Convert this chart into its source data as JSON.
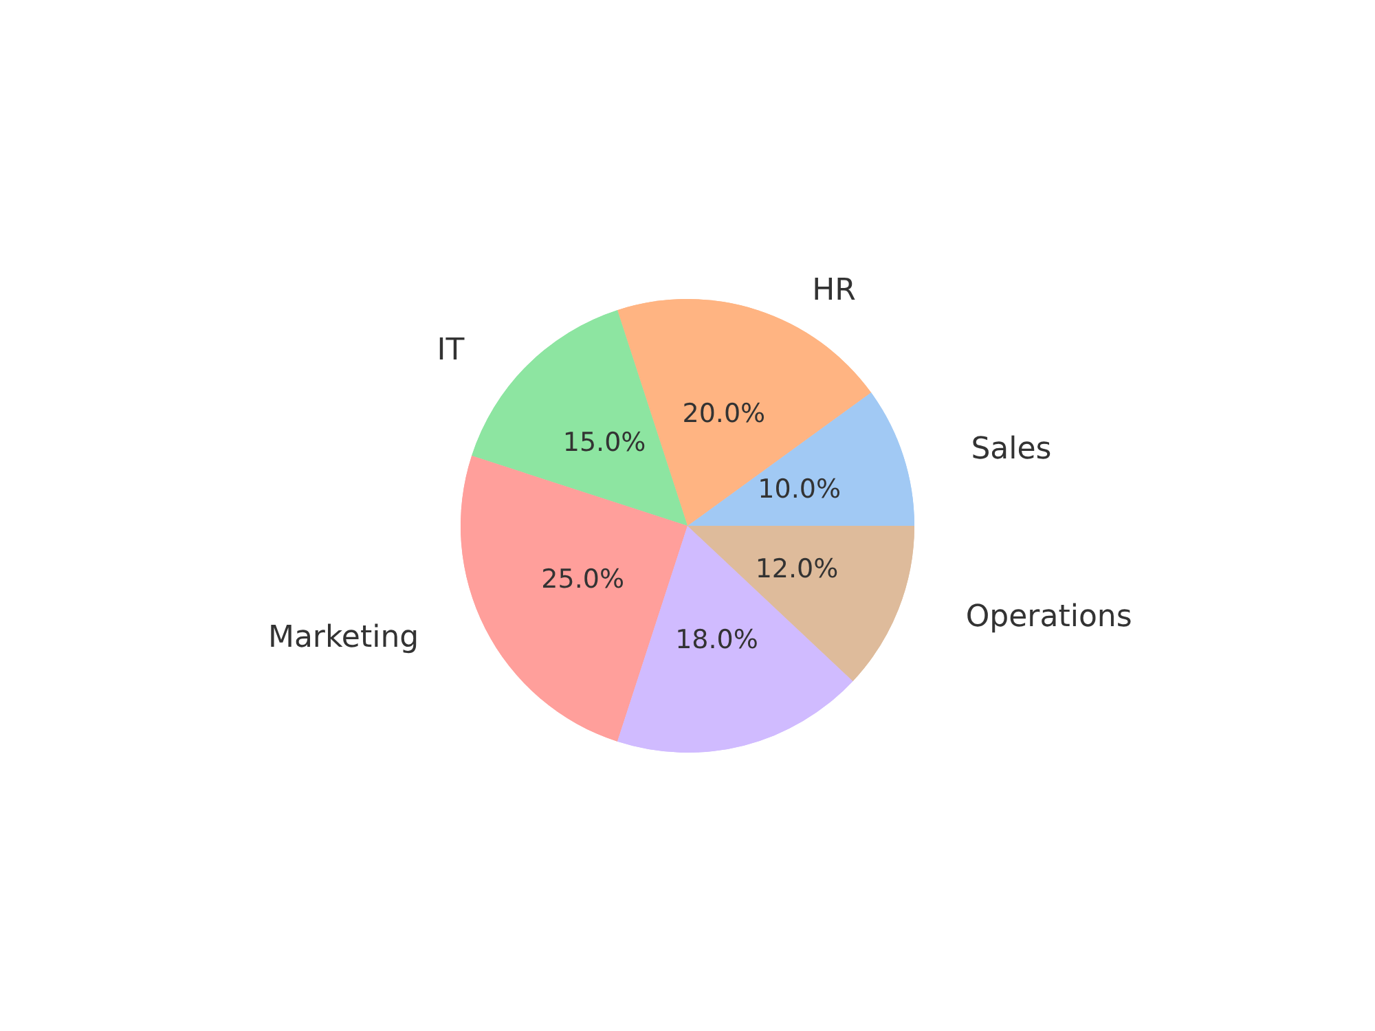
{
  "chart_data": {
    "type": "pie",
    "categories": [
      "Sales",
      "HR",
      "IT",
      "Marketing",
      null,
      "Operations"
    ],
    "values": [
      10,
      20,
      15,
      25,
      18,
      12
    ],
    "colors": [
      "#a1c9f4",
      "#ffb482",
      "#8de5a1",
      "#ff9f9b",
      "#d0bbff",
      "#debb9b"
    ],
    "value_labels": [
      "10.0%",
      "20.0%",
      "15.0%",
      "25.0%",
      "18.0%",
      "12.0%"
    ],
    "legend": false
  }
}
